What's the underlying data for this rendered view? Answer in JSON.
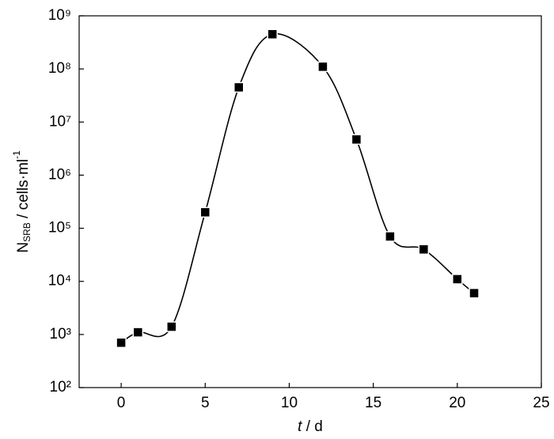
{
  "chart_data": {
    "type": "scatter",
    "x_label": {
      "italic": "t",
      "rest": " / d"
    },
    "y_label": {
      "main": "N",
      "sub": "SRB",
      "rest": " / cells·ml",
      "sup": "-1"
    },
    "log_y": true,
    "smooth_line": true,
    "color": "#000000",
    "series": [
      {
        "name": "NSRB",
        "x": [
          0,
          1,
          3,
          5,
          7,
          9,
          12,
          14,
          16,
          18,
          20,
          21
        ],
        "values": [
          700,
          1100,
          1400,
          200000,
          45000000,
          450000000,
          110000000,
          4700000,
          70000,
          40000,
          11000,
          6000
        ]
      }
    ],
    "xlim": [
      -2.5,
      25
    ],
    "xticks": [
      0,
      5,
      10,
      15,
      20,
      25
    ],
    "ylim": [
      100,
      1000000000
    ],
    "yticks": [
      {
        "value": 100,
        "label": "10²"
      },
      {
        "value": 1000,
        "label": "10³"
      },
      {
        "value": 10000,
        "label": "10⁴"
      },
      {
        "value": 100000,
        "label": "10⁵"
      },
      {
        "value": 1000000,
        "label": "10⁶"
      },
      {
        "value": 10000000,
        "label": "10⁷"
      },
      {
        "value": 100000000,
        "label": "10⁸"
      },
      {
        "value": 1000000000,
        "label": "10⁹"
      }
    ]
  }
}
